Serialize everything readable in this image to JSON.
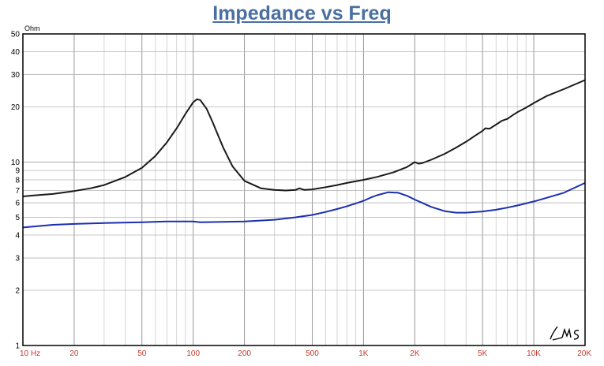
{
  "chart_data": {
    "type": "line",
    "title": "Impedance vs Freq",
    "ylabel_unit": "Ohm",
    "x_scale": "log",
    "y_scale": "log",
    "xlim": [
      10,
      20000
    ],
    "ylim": [
      1,
      50
    ],
    "grid": true,
    "x_tick_labels": [
      {
        "value": 10,
        "label": "10 Hz"
      },
      {
        "value": 20,
        "label": "20"
      },
      {
        "value": 50,
        "label": "50"
      },
      {
        "value": 100,
        "label": "100"
      },
      {
        "value": 200,
        "label": "200"
      },
      {
        "value": 500,
        "label": "500"
      },
      {
        "value": 1000,
        "label": "1K"
      },
      {
        "value": 2000,
        "label": "2K"
      },
      {
        "value": 5000,
        "label": "5K"
      },
      {
        "value": 10000,
        "label": "10K"
      },
      {
        "value": 20000,
        "label": "20K"
      }
    ],
    "y_tick_labels": [
      {
        "value": 1,
        "label": "1"
      },
      {
        "value": 2,
        "label": "2"
      },
      {
        "value": 3,
        "label": "3"
      },
      {
        "value": 4,
        "label": "4"
      },
      {
        "value": 5,
        "label": "5"
      },
      {
        "value": 6,
        "label": "6"
      },
      {
        "value": 7,
        "label": "7"
      },
      {
        "value": 8,
        "label": "8"
      },
      {
        "value": 9,
        "label": "9"
      },
      {
        "value": 10,
        "label": "10"
      },
      {
        "value": 20,
        "label": "20"
      },
      {
        "value": 30,
        "label": "30"
      },
      {
        "value": 40,
        "label": "40"
      },
      {
        "value": 50,
        "label": "50"
      }
    ],
    "series": [
      {
        "color": "#1a1a1a",
        "x": [
          10,
          12,
          15,
          20,
          25,
          30,
          40,
          50,
          60,
          70,
          80,
          90,
          100,
          105,
          110,
          120,
          130,
          150,
          170,
          200,
          250,
          300,
          350,
          400,
          420,
          450,
          500,
          600,
          700,
          800,
          1000,
          1200,
          1500,
          1800,
          2000,
          2100,
          2200,
          2500,
          3000,
          3500,
          4000,
          4500,
          5000,
          5200,
          5500,
          6000,
          6500,
          7000,
          7500,
          8000,
          9000,
          10000,
          12000,
          15000,
          20000
        ],
        "y": [
          6.5,
          6.6,
          6.7,
          6.95,
          7.2,
          7.5,
          8.3,
          9.3,
          10.8,
          12.8,
          15.3,
          18.3,
          21.2,
          22.0,
          21.8,
          19.5,
          16.5,
          12.0,
          9.5,
          7.9,
          7.2,
          7.05,
          7.0,
          7.05,
          7.2,
          7.05,
          7.1,
          7.3,
          7.5,
          7.7,
          8.0,
          8.3,
          8.8,
          9.4,
          10.0,
          9.8,
          9.85,
          10.3,
          11.1,
          12.0,
          12.9,
          13.9,
          14.8,
          15.3,
          15.2,
          16.0,
          16.8,
          17.2,
          18.0,
          18.7,
          19.8,
          21.0,
          23.0,
          25.0,
          28.0
        ]
      },
      {
        "color": "#1a2fb0",
        "x": [
          10,
          15,
          20,
          30,
          50,
          70,
          90,
          100,
          110,
          150,
          200,
          300,
          400,
          500,
          600,
          700,
          800,
          900,
          1000,
          1100,
          1200,
          1400,
          1600,
          1800,
          2000,
          2500,
          3000,
          3500,
          4000,
          5000,
          6000,
          7000,
          8000,
          9000,
          10000,
          12000,
          15000,
          20000
        ],
        "y": [
          4.4,
          4.55,
          4.6,
          4.65,
          4.7,
          4.75,
          4.75,
          4.75,
          4.7,
          4.72,
          4.75,
          4.85,
          5.0,
          5.15,
          5.35,
          5.55,
          5.75,
          5.95,
          6.15,
          6.4,
          6.6,
          6.85,
          6.8,
          6.55,
          6.25,
          5.7,
          5.4,
          5.3,
          5.3,
          5.38,
          5.5,
          5.65,
          5.8,
          5.95,
          6.1,
          6.4,
          6.8,
          7.7
        ]
      }
    ]
  },
  "signature_text": "LMS"
}
